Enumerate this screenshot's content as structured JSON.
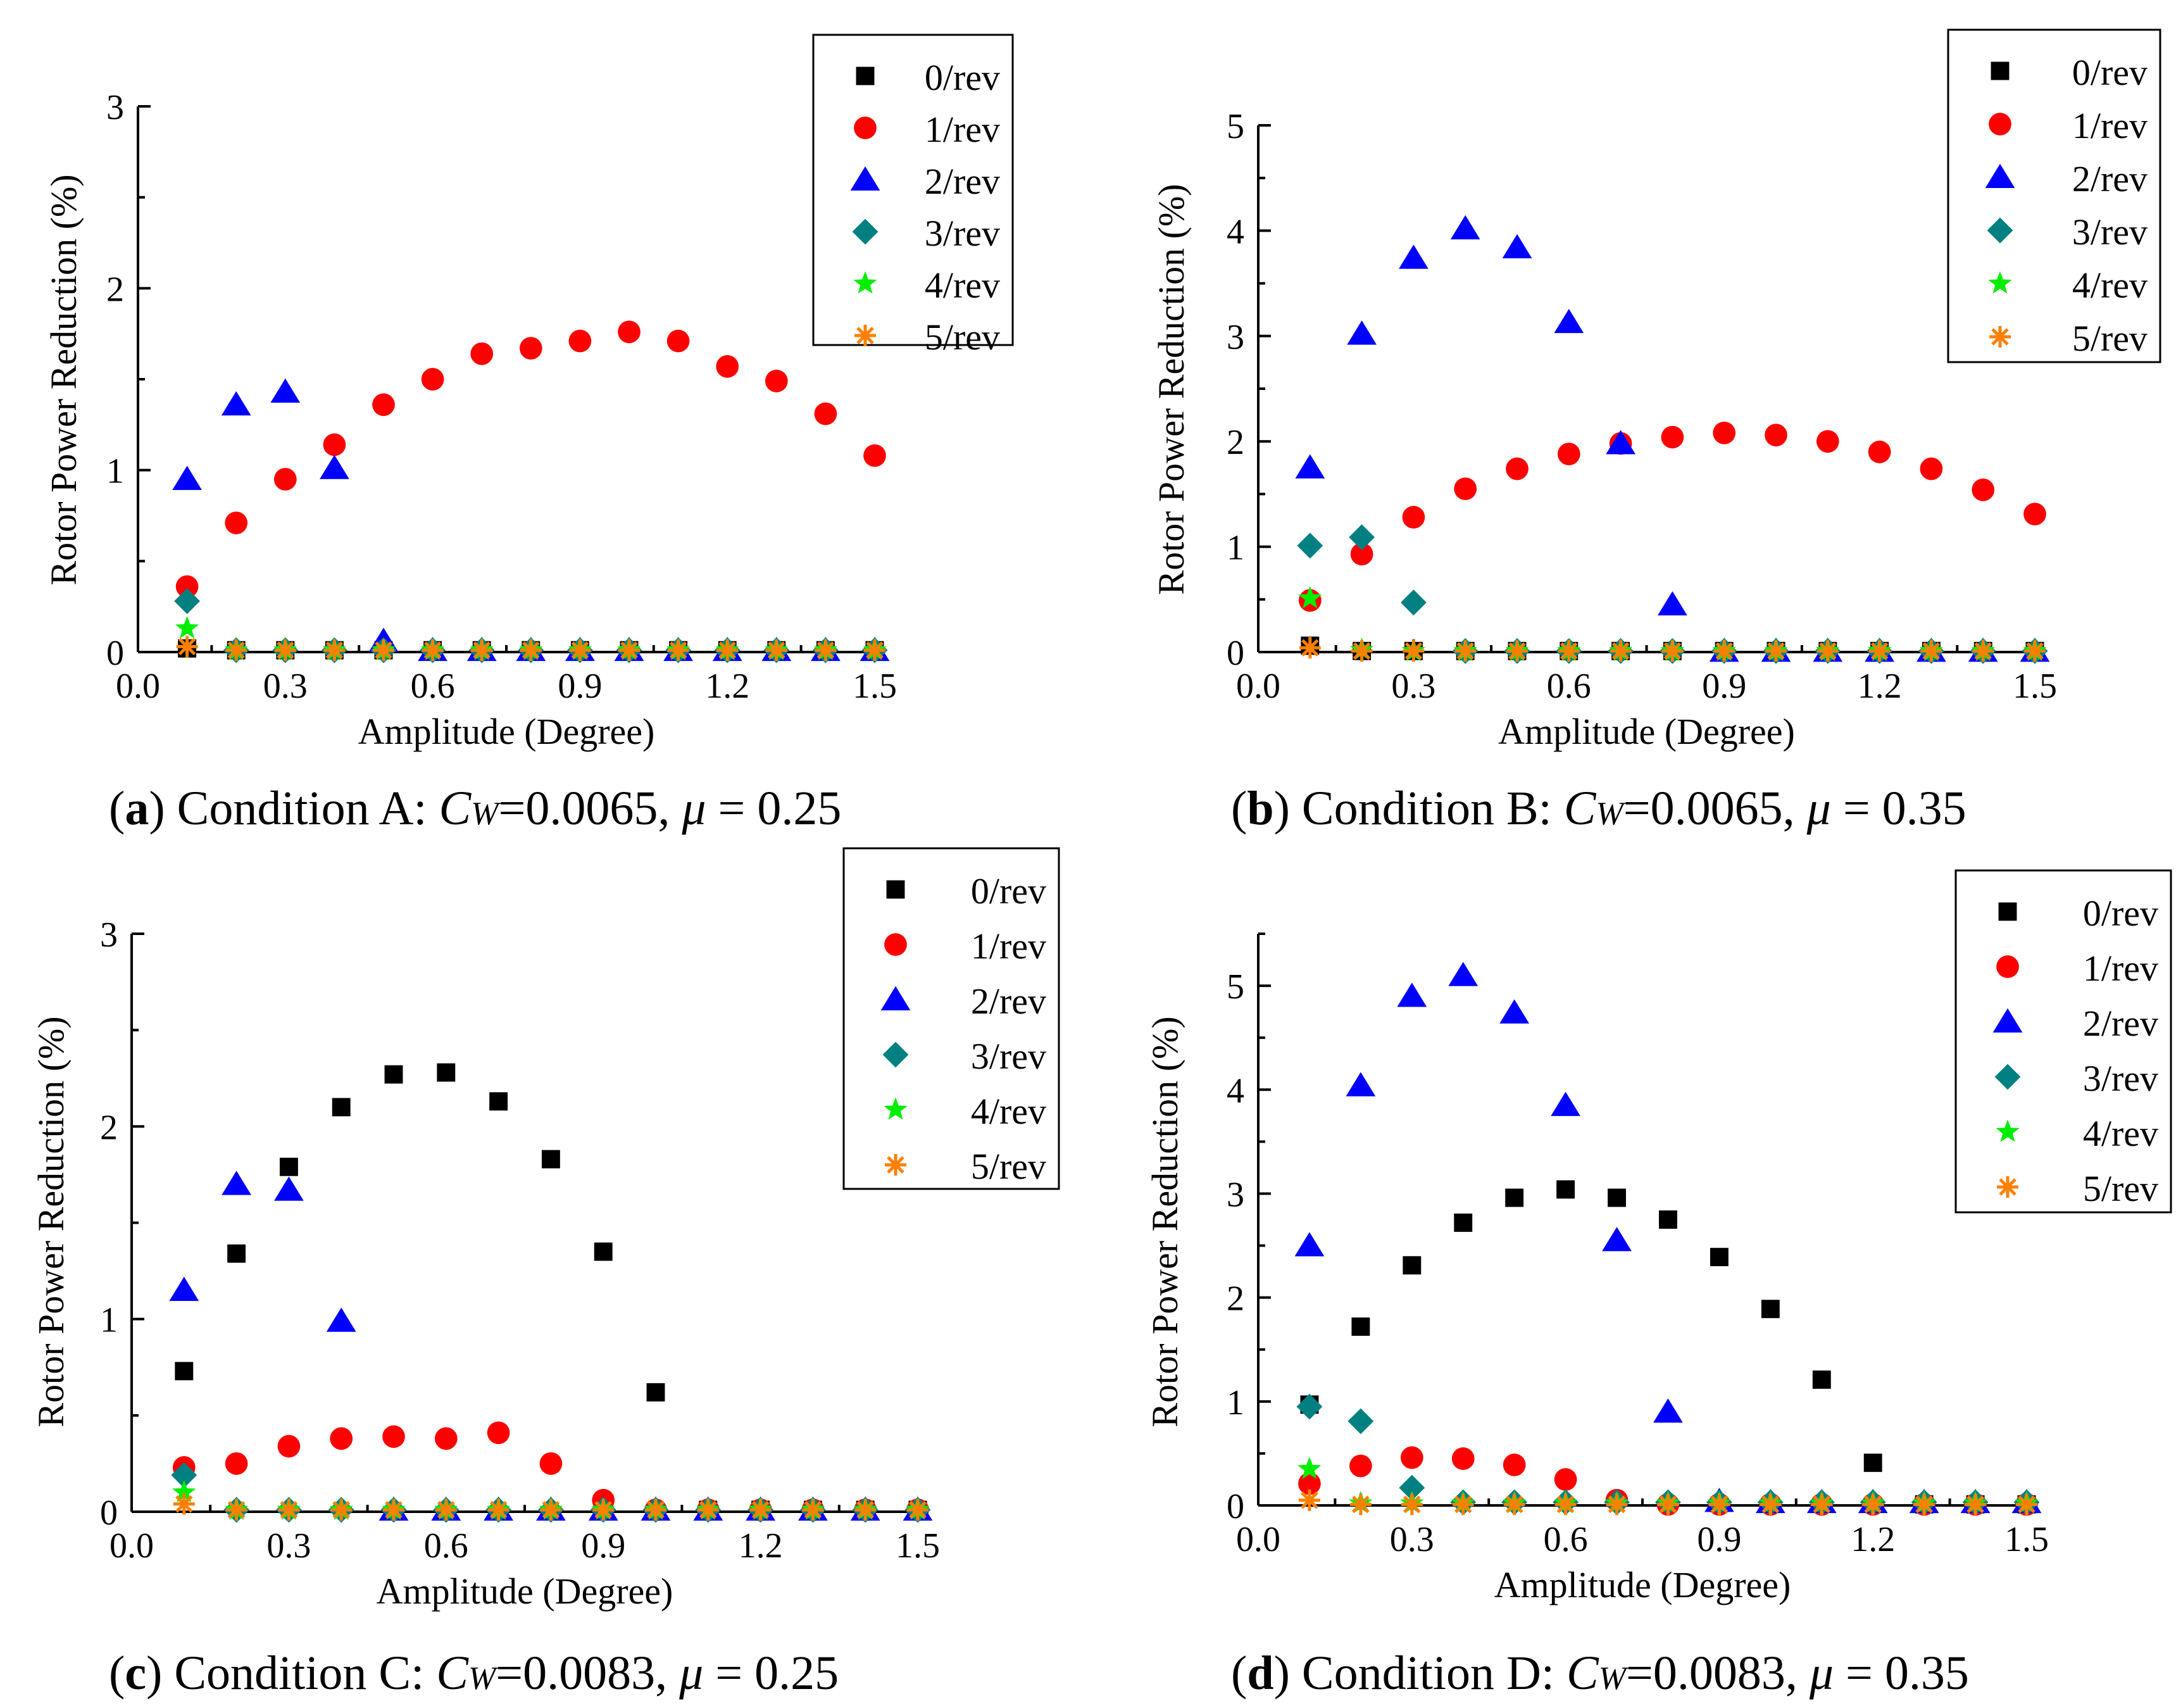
{
  "legend_labels": [
    "0/rev",
    "1/rev",
    "2/rev",
    "3/rev",
    "4/rev",
    "5/rev"
  ],
  "colors": {
    "0/rev": "#000000",
    "1/rev": "#ff0000",
    "2/rev": "#0000ff",
    "3/rev": "#008080",
    "4/rev": "#00ee00",
    "5/rev": "#ff8000"
  },
  "chart_data": [
    {
      "type": "scatter",
      "panel": "a",
      "caption": {
        "tag": "a",
        "prefix": "Condition A: ",
        "var1": "C",
        "sub1": "W",
        "eq1": "=0.0065, ",
        "var2": "μ",
        "eq2": " = 0.25"
      },
      "xlabel": "Amplitude (Degree)",
      "ylabel": "Rotor Power Reduction (%)",
      "xlim": [
        0,
        1.5
      ],
      "ylim": [
        0,
        3
      ],
      "xticks": [
        "0.0",
        "0.3",
        "0.6",
        "0.9",
        "1.2",
        "1.5"
      ],
      "yticks": [
        "0",
        "1",
        "2",
        "3"
      ],
      "legend_position": "top-right",
      "series": [
        {
          "name": "0/rev",
          "x": [
            0.1,
            0.2,
            0.3,
            0.4,
            0.5,
            0.6,
            0.7,
            0.8,
            0.9,
            1.0,
            1.1,
            1.2,
            1.3,
            1.4,
            1.5
          ],
          "y": [
            0.02,
            0.01,
            0.01,
            0.01,
            0.01,
            0.01,
            0.01,
            0.01,
            0.01,
            0.01,
            0.01,
            0.01,
            0.01,
            0.01,
            0.01
          ]
        },
        {
          "name": "1/rev",
          "x": [
            0.1,
            0.2,
            0.3,
            0.4,
            0.5,
            0.6,
            0.7,
            0.8,
            0.9,
            1.0,
            1.1,
            1.2,
            1.3,
            1.4,
            1.5
          ],
          "y": [
            0.36,
            0.71,
            0.95,
            1.14,
            1.36,
            1.5,
            1.64,
            1.67,
            1.71,
            1.76,
            1.71,
            1.57,
            1.49,
            1.31,
            1.08
          ]
        },
        {
          "name": "2/rev",
          "x": [
            0.1,
            0.2,
            0.3,
            0.4,
            0.5,
            0.6,
            0.7,
            0.8,
            0.9,
            1.0,
            1.1,
            1.2,
            1.3,
            1.4,
            1.5
          ],
          "y": [
            0.95,
            1.36,
            1.43,
            1.01,
            0.06,
            0.01,
            0.01,
            0.01,
            0.01,
            0.01,
            0.01,
            0.01,
            0.01,
            0.01,
            0.01
          ]
        },
        {
          "name": "3/rev",
          "x": [
            0.1,
            0.2,
            0.3,
            0.4,
            0.5,
            0.6,
            0.7,
            0.8,
            0.9,
            1.0,
            1.1,
            1.2,
            1.3,
            1.4,
            1.5
          ],
          "y": [
            0.28,
            0.01,
            0.01,
            0.01,
            0.01,
            0.01,
            0.01,
            0.01,
            0.01,
            0.01,
            0.01,
            0.01,
            0.01,
            0.01,
            0.01
          ]
        },
        {
          "name": "4/rev",
          "x": [
            0.1,
            0.2,
            0.3,
            0.4,
            0.5,
            0.6,
            0.7,
            0.8,
            0.9,
            1.0,
            1.1,
            1.2,
            1.3,
            1.4,
            1.5
          ],
          "y": [
            0.13,
            0.01,
            0.01,
            0.01,
            0.01,
            0.01,
            0.01,
            0.01,
            0.01,
            0.01,
            0.01,
            0.01,
            0.01,
            0.01,
            0.01
          ]
        },
        {
          "name": "5/rev",
          "x": [
            0.1,
            0.2,
            0.3,
            0.4,
            0.5,
            0.6,
            0.7,
            0.8,
            0.9,
            1.0,
            1.1,
            1.2,
            1.3,
            1.4,
            1.5
          ],
          "y": [
            0.03,
            0.01,
            0.01,
            0.01,
            0.01,
            0.01,
            0.01,
            0.01,
            0.01,
            0.01,
            0.01,
            0.01,
            0.01,
            0.01,
            0.01
          ]
        }
      ]
    },
    {
      "type": "scatter",
      "panel": "b",
      "caption": {
        "tag": "b",
        "prefix": "Condition B: ",
        "var1": "C",
        "sub1": "W",
        "eq1": "=0.0065, ",
        "var2": "μ",
        "eq2": " = 0.35"
      },
      "xlabel": "Amplitude (Degree)",
      "ylabel": "Rotor Power Reduction (%)",
      "xlim": [
        0,
        1.5
      ],
      "ylim": [
        0,
        5
      ],
      "xticks": [
        "0.0",
        "0.3",
        "0.6",
        "0.9",
        "1.2",
        "1.5"
      ],
      "yticks": [
        "0",
        "1",
        "2",
        "3",
        "4",
        "5"
      ],
      "legend_position": "top-right",
      "series": [
        {
          "name": "0/rev",
          "x": [
            0.1,
            0.2,
            0.3,
            0.4,
            0.5,
            0.6,
            0.7,
            0.8,
            0.9,
            1.0,
            1.1,
            1.2,
            1.3,
            1.4,
            1.5
          ],
          "y": [
            0.06,
            0.01,
            0.01,
            0.01,
            0.01,
            0.01,
            0.01,
            0.01,
            0.01,
            0.01,
            0.01,
            0.01,
            0.01,
            0.01,
            0.01
          ]
        },
        {
          "name": "1/rev",
          "x": [
            0.1,
            0.2,
            0.3,
            0.4,
            0.5,
            0.6,
            0.7,
            0.8,
            0.9,
            1.0,
            1.1,
            1.2,
            1.3,
            1.4,
            1.5
          ],
          "y": [
            0.49,
            0.93,
            1.28,
            1.55,
            1.74,
            1.88,
            1.98,
            2.04,
            2.08,
            2.06,
            2.0,
            1.9,
            1.74,
            1.54,
            1.31
          ]
        },
        {
          "name": "2/rev",
          "x": [
            0.1,
            0.2,
            0.3,
            0.4,
            0.5,
            0.6,
            0.7,
            0.8,
            0.9,
            1.0,
            1.1,
            1.2,
            1.3,
            1.4,
            1.5
          ],
          "y": [
            1.75,
            3.02,
            3.74,
            4.02,
            3.84,
            3.13,
            1.98,
            0.45,
            0.01,
            0.01,
            0.01,
            0.01,
            0.01,
            0.01,
            0.01
          ]
        },
        {
          "name": "3/rev",
          "x": [
            0.1,
            0.2,
            0.3,
            0.4,
            0.5,
            0.6,
            0.7,
            0.8,
            0.9,
            1.0,
            1.1,
            1.2,
            1.3,
            1.4,
            1.5
          ],
          "y": [
            1.01,
            1.09,
            0.47,
            0.01,
            0.01,
            0.01,
            0.01,
            0.01,
            0.01,
            0.01,
            0.01,
            0.01,
            0.01,
            0.01,
            0.01
          ]
        },
        {
          "name": "4/rev",
          "x": [
            0.1,
            0.2,
            0.3,
            0.4,
            0.5,
            0.6,
            0.7,
            0.8,
            0.9,
            1.0,
            1.1,
            1.2,
            1.3,
            1.4,
            1.5
          ],
          "y": [
            0.51,
            0.02,
            0.01,
            0.01,
            0.01,
            0.01,
            0.01,
            0.01,
            0.01,
            0.01,
            0.01,
            0.01,
            0.01,
            0.01,
            0.01
          ]
        },
        {
          "name": "5/rev",
          "x": [
            0.1,
            0.2,
            0.3,
            0.4,
            0.5,
            0.6,
            0.7,
            0.8,
            0.9,
            1.0,
            1.1,
            1.2,
            1.3,
            1.4,
            1.5
          ],
          "y": [
            0.04,
            0.01,
            0.01,
            0.01,
            0.01,
            0.01,
            0.01,
            0.01,
            0.01,
            0.01,
            0.01,
            0.01,
            0.01,
            0.01,
            0.01
          ]
        }
      ]
    },
    {
      "type": "scatter",
      "panel": "c",
      "caption": {
        "tag": "c",
        "prefix": "Condition C: ",
        "var1": "C",
        "sub1": "W",
        "eq1": "=0.0083, ",
        "var2": "μ",
        "eq2": " = 0.25"
      },
      "xlabel": "Amplitude (Degree)",
      "ylabel": "Rotor Power Reduction (%)",
      "xlim": [
        0,
        1.5
      ],
      "ylim": [
        0,
        3
      ],
      "xticks": [
        "0.0",
        "0.3",
        "0.6",
        "0.9",
        "1.2",
        "1.5"
      ],
      "yticks": [
        "0",
        "1",
        "2",
        "3"
      ],
      "legend_position": "top-right",
      "series": [
        {
          "name": "0/rev",
          "x": [
            0.1,
            0.2,
            0.3,
            0.4,
            0.5,
            0.6,
            0.7,
            0.8,
            0.9,
            1.0,
            1.1,
            1.2,
            1.3,
            1.4,
            1.5
          ],
          "y": [
            0.73,
            1.34,
            1.79,
            2.1,
            2.27,
            2.28,
            2.13,
            1.83,
            1.35,
            0.62,
            0.01,
            0.01,
            0.01,
            0.01,
            0.01
          ]
        },
        {
          "name": "1/rev",
          "x": [
            0.1,
            0.2,
            0.3,
            0.4,
            0.5,
            0.6,
            0.7,
            0.8,
            0.9,
            1.0,
            1.1,
            1.2,
            1.3,
            1.4,
            1.5
          ],
          "y": [
            0.23,
            0.25,
            0.34,
            0.38,
            0.39,
            0.38,
            0.41,
            0.25,
            0.06,
            0.01,
            0.01,
            0.01,
            0.01,
            0.01,
            0.01
          ]
        },
        {
          "name": "2/rev",
          "x": [
            0.1,
            0.2,
            0.3,
            0.4,
            0.5,
            0.6,
            0.7,
            0.8,
            0.9,
            1.0,
            1.1,
            1.2,
            1.3,
            1.4,
            1.5
          ],
          "y": [
            1.15,
            1.7,
            1.67,
            0.99,
            0.01,
            0.01,
            0.01,
            0.01,
            0.01,
            0.01,
            0.01,
            0.01,
            0.01,
            0.01,
            0.01
          ]
        },
        {
          "name": "3/rev",
          "x": [
            0.1,
            0.2,
            0.3,
            0.4,
            0.5,
            0.6,
            0.7,
            0.8,
            0.9,
            1.0,
            1.1,
            1.2,
            1.3,
            1.4,
            1.5
          ],
          "y": [
            0.19,
            0.01,
            0.01,
            0.01,
            0.01,
            0.01,
            0.01,
            0.01,
            0.01,
            0.01,
            0.01,
            0.01,
            0.01,
            0.01,
            0.01
          ]
        },
        {
          "name": "4/rev",
          "x": [
            0.1,
            0.2,
            0.3,
            0.4,
            0.5,
            0.6,
            0.7,
            0.8,
            0.9,
            1.0,
            1.1,
            1.2,
            1.3,
            1.4,
            1.5
          ],
          "y": [
            0.1,
            0.01,
            0.01,
            0.01,
            0.01,
            0.01,
            0.01,
            0.01,
            0.01,
            0.01,
            0.01,
            0.01,
            0.01,
            0.01,
            0.01
          ]
        },
        {
          "name": "5/rev",
          "x": [
            0.1,
            0.2,
            0.3,
            0.4,
            0.5,
            0.6,
            0.7,
            0.8,
            0.9,
            1.0,
            1.1,
            1.2,
            1.3,
            1.4,
            1.5
          ],
          "y": [
            0.04,
            0.01,
            0.01,
            0.01,
            0.01,
            0.01,
            0.01,
            0.01,
            0.01,
            0.01,
            0.01,
            0.01,
            0.01,
            0.01,
            0.01
          ]
        }
      ]
    },
    {
      "type": "scatter",
      "panel": "d",
      "caption": {
        "tag": "d",
        "prefix": "Condition D: ",
        "var1": "C",
        "sub1": "W",
        "eq1": "=0.0083, ",
        "var2": "μ",
        "eq2": " = 0.35"
      },
      "xlabel": "Amplitude (Degree)",
      "ylabel": "Rotor Power Reduction (%)",
      "xlim": [
        0,
        1.5
      ],
      "ylim": [
        0,
        5.5
      ],
      "xticks": [
        "0.0",
        "0.3",
        "0.6",
        "0.9",
        "1.2",
        "1.5"
      ],
      "yticks": [
        "0",
        "1",
        "2",
        "3",
        "4",
        "5"
      ],
      "legend_position": "top-right",
      "series": [
        {
          "name": "0/rev",
          "x": [
            0.1,
            0.2,
            0.3,
            0.4,
            0.5,
            0.6,
            0.7,
            0.8,
            0.9,
            1.0,
            1.1,
            1.2,
            1.3,
            1.4,
            1.5
          ],
          "y": [
            0.97,
            1.72,
            2.31,
            2.72,
            2.96,
            3.04,
            2.96,
            2.75,
            2.39,
            1.89,
            1.21,
            0.41,
            0.01,
            0.01,
            0.01
          ]
        },
        {
          "name": "1/rev",
          "x": [
            0.1,
            0.2,
            0.3,
            0.4,
            0.5,
            0.6,
            0.7,
            0.8,
            0.9,
            1.0,
            1.1,
            1.2,
            1.3,
            1.4,
            1.5
          ],
          "y": [
            0.21,
            0.38,
            0.46,
            0.45,
            0.39,
            0.25,
            0.05,
            0.01,
            0.01,
            0.01,
            0.01,
            0.01,
            0.01,
            0.01,
            0.01
          ]
        },
        {
          "name": "2/rev",
          "x": [
            0.1,
            0.2,
            0.3,
            0.4,
            0.5,
            0.6,
            0.7,
            0.8,
            0.9,
            1.0,
            1.1,
            1.2,
            1.3,
            1.4,
            1.5
          ],
          "y": [
            2.5,
            4.04,
            4.9,
            5.1,
            4.74,
            3.85,
            2.55,
            0.9,
            0.04,
            0.03,
            0.03,
            0.03,
            0.03,
            0.03,
            0.03
          ]
        },
        {
          "name": "3/rev",
          "x": [
            0.1,
            0.2,
            0.3,
            0.4,
            0.5,
            0.6,
            0.7,
            0.8,
            0.9,
            1.0,
            1.1,
            1.2,
            1.3,
            1.4,
            1.5
          ],
          "y": [
            0.95,
            0.81,
            0.17,
            0.03,
            0.03,
            0.03,
            0.03,
            0.03,
            0.03,
            0.03,
            0.03,
            0.03,
            0.03,
            0.03,
            0.03
          ]
        },
        {
          "name": "4/rev",
          "x": [
            0.1,
            0.2,
            0.3,
            0.4,
            0.5,
            0.6,
            0.7,
            0.8,
            0.9,
            1.0,
            1.1,
            1.2,
            1.3,
            1.4,
            1.5
          ],
          "y": [
            0.35,
            0.02,
            0.02,
            0.02,
            0.02,
            0.02,
            0.02,
            0.02,
            0.02,
            0.02,
            0.02,
            0.02,
            0.02,
            0.02,
            0.02
          ]
        },
        {
          "name": "5/rev",
          "x": [
            0.1,
            0.2,
            0.3,
            0.4,
            0.5,
            0.6,
            0.7,
            0.8,
            0.9,
            1.0,
            1.1,
            1.2,
            1.3,
            1.4,
            1.5
          ],
          "y": [
            0.05,
            0.01,
            0.01,
            0.01,
            0.01,
            0.01,
            0.01,
            0.01,
            0.01,
            0.01,
            0.01,
            0.01,
            0.01,
            0.01,
            0.01
          ]
        }
      ]
    }
  ]
}
